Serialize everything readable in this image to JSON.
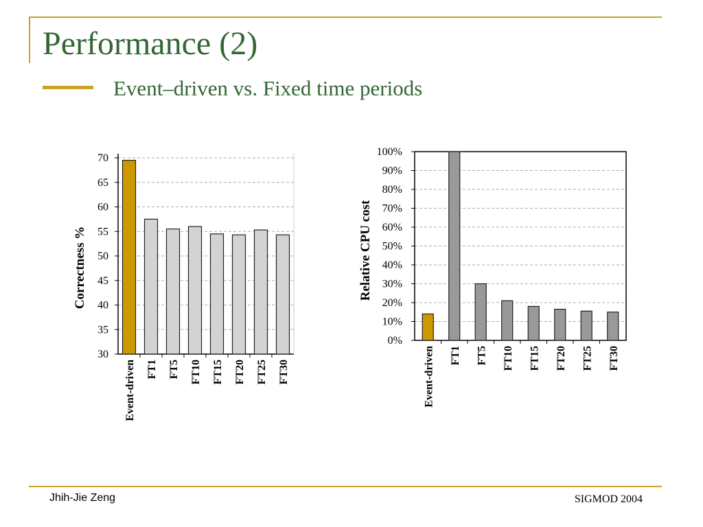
{
  "slide": {
    "title": "Performance (2)",
    "subtitle": "Event–driven vs. Fixed time periods",
    "author": "Jhih-Jie Zeng",
    "conference": "SIGMOD 2004"
  },
  "colors": {
    "accent": "#c9a227",
    "title": "#336633",
    "event_bar": "#cc9900",
    "fixed_bar_left": "#d3d3d3",
    "fixed_bar_right": "#999999"
  },
  "chart_data": [
    {
      "type": "bar",
      "categories": [
        "Event-driven",
        "FT1",
        "FT5",
        "FT10",
        "FT15",
        "FT20",
        "FT25",
        "FT30"
      ],
      "values": [
        69.5,
        57.5,
        55.5,
        56,
        54.5,
        54.3,
        55.3,
        54.3
      ],
      "ylabel": "Correctness %",
      "ylim": [
        30,
        70
      ],
      "yticks": [
        "30",
        "35",
        "40",
        "45",
        "50",
        "55",
        "60",
        "65",
        "70"
      ],
      "grid": true
    },
    {
      "type": "bar",
      "categories": [
        "Event-driven",
        "FT1",
        "FT5",
        "FT10",
        "FT15",
        "FT20",
        "FT25",
        "FT30"
      ],
      "values": [
        14,
        100,
        30,
        21,
        18,
        16.5,
        15.5,
        15
      ],
      "ylabel": "Relative CPU cost",
      "ylim": [
        0,
        100
      ],
      "yticks": [
        "0%",
        "10%",
        "20%",
        "30%",
        "40%",
        "50%",
        "60%",
        "70%",
        "80%",
        "90%",
        "100%"
      ],
      "grid": true
    }
  ]
}
